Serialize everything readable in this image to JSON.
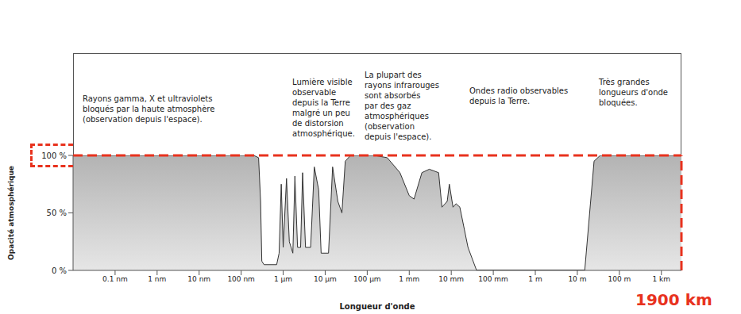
{
  "chart_data": {
    "type": "area",
    "log": "x",
    "color": "#b3b3b3",
    "grid": false,
    "x_label": "Longueur d'onde",
    "y_label": "Opacité atmosphérique",
    "x": [
      1e-11,
      2e-07,
      2.6e-07,
      2.9e-07,
      3.1e-07,
      3.5e-07,
      7e-07,
      8e-07,
      9e-07,
      1e-06,
      1.2e-06,
      1.4e-06,
      1.7e-06,
      1.9e-06,
      2.2e-06,
      2.6e-06,
      2.9e-06,
      3.4e-06,
      4.5e-06,
      5.5e-06,
      7e-06,
      8e-06,
      1.2e-05,
      1.5e-05,
      2e-05,
      2.5e-05,
      3e-05,
      4e-05,
      0.00015,
      0.0003,
      0.0006,
      0.001,
      0.0013,
      0.002,
      0.003,
      0.005,
      0.006,
      0.008,
      0.009,
      0.011,
      0.013,
      0.016,
      0.025,
      0.04,
      15,
      25,
      35,
      3000
    ],
    "values": [
      100,
      100,
      98,
      60,
      8,
      5,
      5,
      15,
      75,
      20,
      80,
      25,
      15,
      82,
      20,
      20,
      85,
      20,
      20,
      90,
      70,
      15,
      15,
      90,
      60,
      50,
      95,
      100,
      100,
      98,
      85,
      65,
      62,
      85,
      88,
      85,
      55,
      60,
      75,
      55,
      58,
      55,
      20,
      0,
      0,
      95,
      100,
      100
    ],
    "xlim": [
      1e-11,
      3000
    ],
    "xticks": [
      {
        "value": 1e-10,
        "label": "0.1 nm"
      },
      {
        "value": 1e-09,
        "label": "1 nm"
      },
      {
        "value": 1e-08,
        "label": "10 nm"
      },
      {
        "value": 1e-07,
        "label": "100 nm"
      },
      {
        "value": 1e-06,
        "label": "1 µm"
      },
      {
        "value": 1e-05,
        "label": "10 µm"
      },
      {
        "value": 0.0001,
        "label": "100 µm"
      },
      {
        "value": 0.001,
        "label": "1 mm"
      },
      {
        "value": 0.01,
        "label": "10 mm"
      },
      {
        "value": 0.1,
        "label": "100 mm"
      },
      {
        "value": 1,
        "label": "1 m"
      },
      {
        "value": 10,
        "label": "10 m"
      },
      {
        "value": 100,
        "label": "100 m"
      },
      {
        "value": 1000,
        "label": "1 km"
      }
    ],
    "ylim": [
      0,
      100
    ],
    "yticks": [
      {
        "value": 0,
        "label": "0 %"
      },
      {
        "value": 50,
        "label": "50 %"
      },
      {
        "value": 100,
        "label": "100 %"
      }
    ],
    "annotations": [
      "Rayons gamma, X et ultraviolets\nbloqués par la haute atmosphère\n(observation depuis l'espace).",
      "Lumière visible\nobservable\ndepuis la Terre\nmalgré un peu\nde distorsion\natmosphérique.",
      "La plupart des\nrayons infrarouges\nsont absorbés\npar des gaz\natmosphériques\n(observation\ndepuis l'espace).",
      "Ondes radio observables\ndepuis la Terre.",
      "Très grandes\nlongueurs d'onde\nbloquées.",
      "1900 km"
    ]
  }
}
